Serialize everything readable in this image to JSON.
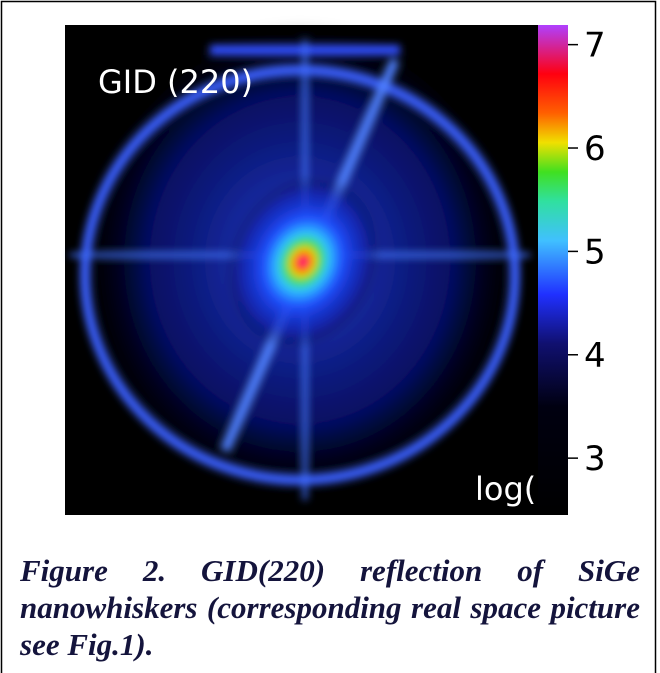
{
  "figure": {
    "label": "GID (220)",
    "colorbar": {
      "label": "log(I)",
      "lim": [
        2.45,
        7.19
      ],
      "ticks": [
        3,
        4,
        5,
        6,
        7
      ]
    },
    "caption": "Figure 2. GID(220) reflection of SiGe nanowhiskers (corresponding real space picture see Fig.1)."
  }
}
